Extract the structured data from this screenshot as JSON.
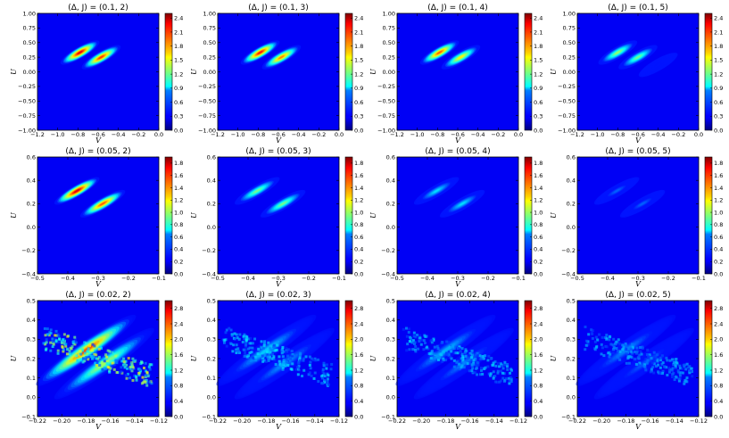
{
  "chart_data": [
    {
      "type": "heatmap",
      "title": "(Δ, J) = (0.1, 2)",
      "xlabel": "V",
      "ylabel": "U",
      "xlim": [
        -1.2,
        0.0
      ],
      "ylim": [
        -1.0,
        1.0
      ],
      "xticks": [
        "−1.2",
        "−1.0",
        "−0.8",
        "−0.6",
        "−0.4",
        "−0.2",
        "0.0"
      ],
      "yticks": [
        "−1.00",
        "−0.75",
        "−0.50",
        "−0.25",
        "0.00",
        "0.25",
        "0.50",
        "0.75",
        "1.00"
      ],
      "colorbar": {
        "min": 0,
        "max": 2.5,
        "ticks": [
          "0.0",
          "0.3",
          "0.6",
          "0.9",
          "1.2",
          "1.5",
          "1.8",
          "2.1",
          "2.4"
        ]
      },
      "peaks": [
        {
          "v": -0.78,
          "u": 0.33,
          "value": 2.4
        },
        {
          "v": -0.57,
          "u": 0.25,
          "value": 2.2
        }
      ]
    },
    {
      "type": "heatmap",
      "title": "(Δ, J) = (0.1, 3)",
      "xlabel": "V",
      "ylabel": "U",
      "xlim": [
        -1.2,
        0.0
      ],
      "ylim": [
        -1.0,
        1.0
      ],
      "xticks": [
        "−1.2",
        "−1.0",
        "−0.8",
        "−0.6",
        "−0.4",
        "−0.2",
        "0.0"
      ],
      "yticks": [
        "−1.00",
        "−0.75",
        "−0.50",
        "−0.25",
        "0.00",
        "0.25",
        "0.50",
        "0.75",
        "1.00"
      ],
      "colorbar": {
        "min": 0,
        "max": 2.5,
        "ticks": [
          "0.0",
          "0.3",
          "0.6",
          "0.9",
          "1.2",
          "1.5",
          "1.8",
          "2.1",
          "2.4"
        ]
      },
      "peaks": [
        {
          "v": -0.78,
          "u": 0.33,
          "value": 2.3
        },
        {
          "v": -0.57,
          "u": 0.25,
          "value": 2.0
        }
      ]
    },
    {
      "type": "heatmap",
      "title": "(Δ, J) = (0.1, 4)",
      "xlabel": "V",
      "ylabel": "U",
      "xlim": [
        -1.2,
        0.0
      ],
      "ylim": [
        -1.0,
        1.0
      ],
      "xticks": [
        "−1.2",
        "−1.0",
        "−0.8",
        "−0.6",
        "−0.4",
        "−0.2",
        "0.0"
      ],
      "yticks": [
        "−1.00",
        "−0.75",
        "−0.50",
        "−0.25",
        "0.00",
        "0.25",
        "0.50",
        "0.75",
        "1.00"
      ],
      "colorbar": {
        "min": 0,
        "max": 2.5,
        "ticks": [
          "0.0",
          "0.3",
          "0.6",
          "0.9",
          "1.2",
          "1.5",
          "1.8",
          "2.1",
          "2.4"
        ]
      },
      "peaks": [
        {
          "v": -0.78,
          "u": 0.33,
          "value": 2.1
        },
        {
          "v": -0.57,
          "u": 0.25,
          "value": 1.7
        }
      ]
    },
    {
      "type": "heatmap",
      "title": "(Δ, J) = (0.1, 5)",
      "xlabel": "V",
      "ylabel": "U",
      "xlim": [
        -1.2,
        0.0
      ],
      "ylim": [
        -1.0,
        1.0
      ],
      "xticks": [
        "−1.2",
        "−1.0",
        "−0.8",
        "−0.6",
        "−0.4",
        "−0.2",
        "0.0"
      ],
      "yticks": [
        "−1.00",
        "−0.75",
        "−0.50",
        "−0.25",
        "0.00",
        "0.25",
        "0.50",
        "0.75",
        "1.00"
      ],
      "colorbar": {
        "min": 0,
        "max": 2.5,
        "ticks": [
          "0.0",
          "0.3",
          "0.6",
          "0.9",
          "1.2",
          "1.5",
          "1.8",
          "2.1",
          "2.4"
        ]
      },
      "peaks": [
        {
          "v": -0.8,
          "u": 0.33,
          "value": 1.4
        },
        {
          "v": -0.6,
          "u": 0.25,
          "value": 1.3
        },
        {
          "v": -0.4,
          "u": 0.12,
          "value": 0.3
        }
      ]
    },
    {
      "type": "heatmap",
      "title": "(Δ, J) = (0.05, 2)",
      "xlabel": "V",
      "ylabel": "U",
      "xlim": [
        -0.5,
        -0.1
      ],
      "ylim": [
        -0.4,
        0.6
      ],
      "xticks": [
        "−0.5",
        "−0.4",
        "−0.3",
        "−0.2",
        "−0.1"
      ],
      "yticks": [
        "−0.4",
        "−0.2",
        "0.0",
        "0.2",
        "0.4",
        "0.6"
      ],
      "colorbar": {
        "min": 0,
        "max": 1.9,
        "ticks": [
          "0.0",
          "0.2",
          "0.4",
          "0.6",
          "0.8",
          "1.0",
          "1.2",
          "1.4",
          "1.6",
          "1.8"
        ]
      },
      "peaks": [
        {
          "v": -0.37,
          "u": 0.31,
          "value": 1.85
        },
        {
          "v": -0.285,
          "u": 0.2,
          "value": 1.6
        }
      ]
    },
    {
      "type": "heatmap",
      "title": "(Δ, J) = (0.05, 3)",
      "xlabel": "V",
      "ylabel": "U",
      "xlim": [
        -0.5,
        -0.1
      ],
      "ylim": [
        -0.4,
        0.6
      ],
      "xticks": [
        "−0.5",
        "−0.4",
        "−0.3",
        "−0.2",
        "−0.1"
      ],
      "yticks": [
        "−0.4",
        "−0.2",
        "0.0",
        "0.2",
        "0.4",
        "0.6"
      ],
      "colorbar": {
        "min": 0,
        "max": 1.9,
        "ticks": [
          "0.0",
          "0.2",
          "0.4",
          "0.6",
          "0.8",
          "1.0",
          "1.2",
          "1.4",
          "1.6",
          "1.8"
        ]
      },
      "peaks": [
        {
          "v": -0.37,
          "u": 0.31,
          "value": 1.0
        },
        {
          "v": -0.285,
          "u": 0.2,
          "value": 1.0
        }
      ]
    },
    {
      "type": "heatmap",
      "title": "(Δ, J) = (0.05, 4)",
      "xlabel": "V",
      "ylabel": "U",
      "xlim": [
        -0.5,
        -0.1
      ],
      "ylim": [
        -0.4,
        0.6
      ],
      "xticks": [
        "−0.5",
        "−0.4",
        "−0.3",
        "−0.2",
        "−0.1"
      ],
      "yticks": [
        "−0.4",
        "−0.2",
        "0.0",
        "0.2",
        "0.4",
        "0.6"
      ],
      "colorbar": {
        "min": 0,
        "max": 1.9,
        "ticks": [
          "0.0",
          "0.2",
          "0.4",
          "0.6",
          "0.8",
          "1.0",
          "1.2",
          "1.4",
          "1.6",
          "1.8"
        ]
      },
      "peaks": [
        {
          "v": -0.37,
          "u": 0.31,
          "value": 0.7
        },
        {
          "v": -0.285,
          "u": 0.2,
          "value": 0.7
        }
      ]
    },
    {
      "type": "heatmap",
      "title": "(Δ, J) = (0.05, 5)",
      "xlabel": "V",
      "ylabel": "U",
      "xlim": [
        -0.5,
        -0.1
      ],
      "ylim": [
        -0.4,
        0.6
      ],
      "xticks": [
        "−0.5",
        "−0.4",
        "−0.3",
        "−0.2",
        "−0.1"
      ],
      "yticks": [
        "−0.4",
        "−0.2",
        "0.0",
        "0.2",
        "0.4",
        "0.6"
      ],
      "colorbar": {
        "min": 0,
        "max": 1.9,
        "ticks": [
          "0.0",
          "0.2",
          "0.4",
          "0.6",
          "0.8",
          "1.0",
          "1.2",
          "1.4",
          "1.6",
          "1.8"
        ]
      },
      "peaks": [
        {
          "v": -0.37,
          "u": 0.31,
          "value": 0.45
        },
        {
          "v": -0.285,
          "u": 0.2,
          "value": 0.45
        }
      ]
    },
    {
      "type": "heatmap",
      "title": "(Δ, J) = (0.02, 2)",
      "xlabel": "V",
      "ylabel": "U",
      "xlim": [
        -0.22,
        -0.12
      ],
      "ylim": [
        -0.15,
        0.55
      ],
      "xticks": [
        "−0.22",
        "−0.20",
        "−0.18",
        "−0.16",
        "−0.14",
        "−0.12"
      ],
      "yticks": [
        "−0.1",
        "0.0",
        "0.1",
        "0.2",
        "0.3",
        "0.4",
        "0.5"
      ],
      "colorbar": {
        "min": 0,
        "max": 3.0,
        "ticks": [
          "0.0",
          "0.4",
          "0.8",
          "1.2",
          "1.6",
          "2.0",
          "2.4",
          "2.8"
        ]
      },
      "peaks": [
        {
          "v": -0.18,
          "u": 0.25,
          "value": 2.7
        },
        {
          "v": -0.165,
          "u": 0.17,
          "value": 1.8
        }
      ]
    },
    {
      "type": "heatmap",
      "title": "(Δ, J) = (0.02, 3)",
      "xlabel": "V",
      "ylabel": "U",
      "xlim": [
        -0.22,
        -0.12
      ],
      "ylim": [
        -0.15,
        0.55
      ],
      "xticks": [
        "−0.22",
        "−0.20",
        "−0.18",
        "−0.16",
        "−0.14",
        "−0.12"
      ],
      "yticks": [
        "−0.1",
        "0.0",
        "0.1",
        "0.2",
        "0.3",
        "0.4",
        "0.5"
      ],
      "colorbar": {
        "min": 0,
        "max": 3.0,
        "ticks": [
          "0.0",
          "0.4",
          "0.8",
          "1.2",
          "1.6",
          "2.0",
          "2.4",
          "2.8"
        ]
      },
      "peaks": [
        {
          "v": -0.18,
          "u": 0.25,
          "value": 1.1
        },
        {
          "v": -0.165,
          "u": 0.17,
          "value": 0.9
        }
      ]
    },
    {
      "type": "heatmap",
      "title": "(Δ, J) = (0.02, 4)",
      "xlabel": "V",
      "ylabel": "U",
      "xlim": [
        -0.22,
        -0.12
      ],
      "ylim": [
        -0.15,
        0.55
      ],
      "xticks": [
        "−0.22",
        "−0.20",
        "−0.18",
        "−0.16",
        "−0.14",
        "−0.12"
      ],
      "yticks": [
        "−0.1",
        "0.0",
        "0.1",
        "0.2",
        "0.3",
        "0.4",
        "0.5"
      ],
      "colorbar": {
        "min": 0,
        "max": 3.0,
        "ticks": [
          "0.0",
          "0.4",
          "0.8",
          "1.2",
          "1.6",
          "2.0",
          "2.4",
          "2.8"
        ]
      },
      "peaks": [
        {
          "v": -0.18,
          "u": 0.25,
          "value": 1.0
        },
        {
          "v": -0.165,
          "u": 0.17,
          "value": 0.8
        }
      ]
    },
    {
      "type": "heatmap",
      "title": "(Δ, J) = (0.02, 5)",
      "xlabel": "V",
      "ylabel": "U",
      "xlim": [
        -0.22,
        -0.12
      ],
      "ylim": [
        -0.15,
        0.55
      ],
      "xticks": [
        "−0.22",
        "−0.20",
        "−0.18",
        "−0.16",
        "−0.14",
        "−0.12"
      ],
      "yticks": [
        "−0.1",
        "0.0",
        "0.1",
        "0.2",
        "0.3",
        "0.4",
        "0.5"
      ],
      "colorbar": {
        "min": 0,
        "max": 3.0,
        "ticks": [
          "0.0",
          "0.4",
          "0.8",
          "1.2",
          "1.6",
          "2.0",
          "2.4",
          "2.8"
        ]
      },
      "peaks": [
        {
          "v": -0.18,
          "u": 0.25,
          "value": 0.85
        },
        {
          "v": -0.165,
          "u": 0.17,
          "value": 0.7
        }
      ]
    }
  ]
}
